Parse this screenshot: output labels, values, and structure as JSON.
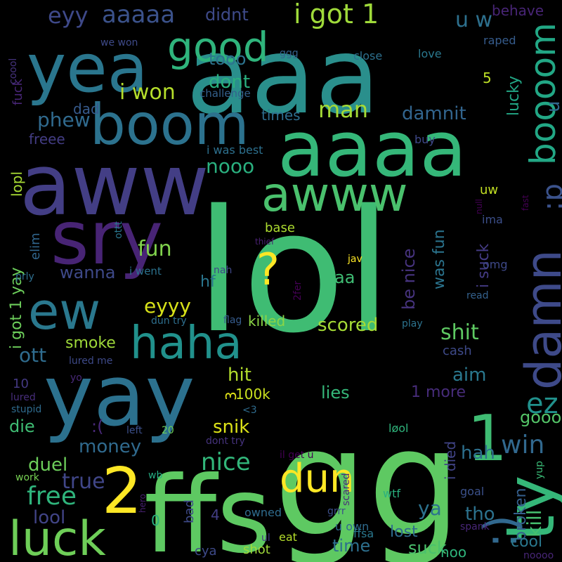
{
  "background": "#000000",
  "words": [
    {
      "text": "lol",
      "color": "#3fbc73",
      "rot": 0
    },
    {
      "text": "gg",
      "color": "#5ec962",
      "rot": 0
    },
    {
      "text": "ffs",
      "color": "#5ec962",
      "rot": 0
    },
    {
      "text": "aaa",
      "color": "#2a8f8c",
      "rot": 0
    },
    {
      "text": "aww",
      "color": "#433e85",
      "rot": 0
    },
    {
      "text": "yay",
      "color": "#2c718e",
      "rot": 0
    },
    {
      "text": "sry",
      "color": "#482475",
      "rot": 0
    },
    {
      "text": "aaaa",
      "color": "#35b779",
      "rot": 0
    },
    {
      "text": "boom",
      "color": "#2c728e",
      "rot": 0
    },
    {
      "text": "yea",
      "color": "#2a768e",
      "rot": 0
    },
    {
      "text": "ew",
      "color": "#2a788e",
      "rot": 0
    },
    {
      "text": "luck",
      "color": "#6ece58",
      "rot": 0
    },
    {
      "text": "haha",
      "color": "#21918c",
      "rot": 0
    },
    {
      "text": "awww",
      "color": "#4ac16d",
      "rot": 0
    },
    {
      "text": "dun",
      "color": "#fde725",
      "rot": 0
    },
    {
      "text": "2",
      "color": "#fde725",
      "rot": 0
    },
    {
      "text": "damn",
      "color": "#3e4a89",
      "rot": -90
    },
    {
      "text": "ty",
      "color": "#35b779",
      "rot": -90
    },
    {
      "text": "1",
      "color": "#3fbc73",
      "rot": 0
    },
    {
      "text": "boooom",
      "color": "#22a785",
      "rot": -90
    },
    {
      "text": "good",
      "color": "#2fb47c",
      "rot": 0
    },
    {
      "text": "?",
      "color": "#fde725",
      "rot": 0
    },
    {
      "text": ":)",
      "color": "#31688e",
      "rot": -90
    },
    {
      "text": ":p",
      "color": "#3b528b",
      "rot": -90
    },
    {
      "text": ":(",
      "color": "#482878",
      "rot": 0
    },
    {
      "text": "i got 1",
      "color": "#9fda3a",
      "rot": 0
    },
    {
      "text": "aaaaa",
      "color": "#3b528b",
      "rot": 0
    },
    {
      "text": "eyy",
      "color": "#3e4989",
      "rot": 0
    },
    {
      "text": "didnt",
      "color": "#3e4a89",
      "rot": 0
    },
    {
      "text": "u w",
      "color": "#2d708e",
      "rot": 0
    },
    {
      "text": "behave",
      "color": "#482576",
      "rot": 0
    },
    {
      "text": "u",
      "color": "#31688e",
      "rot": -90
    },
    {
      "text": "we won",
      "color": "#3e4a89",
      "rot": 0
    },
    {
      "text": "raped",
      "color": "#365c8d",
      "rot": 0
    },
    {
      "text": "coool",
      "color": "#46337e",
      "rot": -90
    },
    {
      "text": "fuck",
      "color": "#482677",
      "rot": -90
    },
    {
      "text": "tooo",
      "color": "#2c738e",
      "rot": 0
    },
    {
      "text": "ggg",
      "color": "#34618d",
      "rot": 0
    },
    {
      "text": "close",
      "color": "#2d708e",
      "rot": 0
    },
    {
      "text": "love",
      "color": "#2a788e",
      "rot": 0
    },
    {
      "text": "dont",
      "color": "#2ab07f",
      "rot": 0
    },
    {
      "text": "i won",
      "color": "#b5de2b",
      "rot": 0
    },
    {
      "text": "challenge",
      "color": "#34618d",
      "rot": 0
    },
    {
      "text": "5",
      "color": "#bddf26",
      "rot": 0
    },
    {
      "text": "lucky",
      "color": "#22a785",
      "rot": -90
    },
    {
      "text": "dad",
      "color": "#375b8d",
      "rot": 0
    },
    {
      "text": "phew",
      "color": "#306a8e",
      "rot": 0
    },
    {
      "text": "man",
      "color": "#a5db36",
      "rot": 0
    },
    {
      "text": "damnit",
      "color": "#32658e",
      "rot": 0
    },
    {
      "text": "times",
      "color": "#2e6d8e",
      "rot": 0
    },
    {
      "text": "freee",
      "color": "#433d84",
      "rot": 0
    },
    {
      "text": "buy",
      "color": "#3f4889",
      "rot": 0
    },
    {
      "text": "lopl",
      "color": "#a8db34",
      "rot": -90
    },
    {
      "text": "i was best",
      "color": "#2d708e",
      "rot": 0
    },
    {
      "text": "nooo",
      "color": "#2ab07f",
      "rot": 0
    },
    {
      "text": "fast",
      "color": "#440154",
      "rot": -90
    },
    {
      "text": "uw",
      "color": "#c2df23",
      "rot": 0
    },
    {
      "text": "null",
      "color": "#440154",
      "rot": -90
    },
    {
      "text": "ima",
      "color": "#3c4f8a",
      "rot": 0
    },
    {
      "text": "i got 1 yay",
      "color": "#6ccd5a",
      "rot": -90
    },
    {
      "text": "elim",
      "color": "#31668e",
      "rot": -90
    },
    {
      "text": "ottt",
      "color": "#2a768e",
      "rot": -90
    },
    {
      "text": "base",
      "color": "#addc30",
      "rot": 0
    },
    {
      "text": "i suck",
      "color": "#443b84",
      "rot": -90
    },
    {
      "text": "thief",
      "color": "#482071",
      "rot": 0
    },
    {
      "text": "fun",
      "color": "#81d34d",
      "rot": 0
    },
    {
      "text": "jav",
      "color": "#fde725",
      "rot": 0
    },
    {
      "text": "be nice",
      "color": "#46337e",
      "rot": -90
    },
    {
      "text": "was fun",
      "color": "#2b748e",
      "rot": -90
    },
    {
      "text": "omg",
      "color": "#3e4989",
      "rot": 0
    },
    {
      "text": "wanna",
      "color": "#3e4989",
      "rot": 0
    },
    {
      "text": "i went",
      "color": "#2c728e",
      "rot": 0
    },
    {
      "text": "aa",
      "color": "#3fbc73",
      "rot": 0
    },
    {
      "text": "prly",
      "color": "#2e6e8e",
      "rot": 0
    },
    {
      "text": "nah",
      "color": "#3f4788",
      "rot": 0
    },
    {
      "text": "read",
      "color": "#34618d",
      "rot": 0
    },
    {
      "text": "hf",
      "color": "#2a768e",
      "rot": 0
    },
    {
      "text": "2fer",
      "color": "#440154",
      "rot": -90
    },
    {
      "text": "eyyy",
      "color": "#d8e219",
      "rot": 0
    },
    {
      "text": "dun try",
      "color": "#2e6f8e",
      "rot": 0
    },
    {
      "text": "flag",
      "color": "#365c8d",
      "rot": 0
    },
    {
      "text": "killed",
      "color": "#8bd646",
      "rot": 0
    },
    {
      "text": "scored",
      "color": "#a5db36",
      "rot": 0
    },
    {
      "text": "play",
      "color": "#2c738e",
      "rot": 0
    },
    {
      "text": "shit",
      "color": "#5ec962",
      "rot": 0
    },
    {
      "text": "ott",
      "color": "#2f6c8e",
      "rot": 0
    },
    {
      "text": "smoke",
      "color": "#9fda3a",
      "rot": 0
    },
    {
      "text": "cash",
      "color": "#3e4a89",
      "rot": 0
    },
    {
      "text": "lured me",
      "color": "#3e4a89",
      "rot": 0
    },
    {
      "text": "hit",
      "color": "#b2dd2d",
      "rot": 0
    },
    {
      "text": "aim",
      "color": "#2a788e",
      "rot": 0
    },
    {
      "text": "10",
      "color": "#443983",
      "rot": 0
    },
    {
      "text": "yo",
      "color": "#482878",
      "rot": 0
    },
    {
      "text": "100k",
      "color": "#cae11f",
      "rot": 0
    },
    {
      "text": "3",
      "color": "#e2e418",
      "rot": -90
    },
    {
      "text": "lies",
      "color": "#35b779",
      "rot": 0
    },
    {
      "text": "1 more",
      "color": "#472c7a",
      "rot": 0
    },
    {
      "text": "lured",
      "color": "#472d7b",
      "rot": 0
    },
    {
      "text": "stupid",
      "color": "#2f6b8e",
      "rot": 0
    },
    {
      "text": "ez",
      "color": "#21918c",
      "rot": 0
    },
    {
      "text": "<3",
      "color": "#2f6c8e",
      "rot": 0
    },
    {
      "text": "die",
      "color": "#3fbc73",
      "rot": 0
    },
    {
      "text": "snik",
      "color": "#dde318",
      "rot": 0
    },
    {
      "text": "goood",
      "color": "#54c568",
      "rot": 0
    },
    {
      "text": "money",
      "color": "#306a8e",
      "rot": 0
    },
    {
      "text": "left",
      "color": "#3c508b",
      "rot": 0
    },
    {
      "text": "20",
      "color": "#6ece58",
      "rot": 0
    },
    {
      "text": "i died",
      "color": "#414487",
      "rot": -90
    },
    {
      "text": "dont try",
      "color": "#46337e",
      "rot": 0
    },
    {
      "text": "løol",
      "color": "#2fb47c",
      "rot": 0
    },
    {
      "text": "win",
      "color": "#31688e",
      "rot": 0
    },
    {
      "text": "hah",
      "color": "#2d708e",
      "rot": 0
    },
    {
      "text": "nice",
      "color": "#32b67a",
      "rot": 0
    },
    {
      "text": "duel",
      "color": "#6ccd5a",
      "rot": 0
    },
    {
      "text": "il get u",
      "color": "#440154",
      "rot": 0
    },
    {
      "text": "true",
      "color": "#404688",
      "rot": 0
    },
    {
      "text": "wb",
      "color": "#25ac82",
      "rot": 0
    },
    {
      "text": "work",
      "color": "#77d153",
      "rot": 0
    },
    {
      "text": "kill",
      "color": "#46c06f",
      "rot": -90
    },
    {
      "text": "yup",
      "color": "#3aba76",
      "rot": -90
    },
    {
      "text": "free",
      "color": "#2fb47c",
      "rot": 0
    },
    {
      "text": "broken",
      "color": "#355f8d",
      "rot": -90
    },
    {
      "text": "ya",
      "color": "#2c728e",
      "rot": 0
    },
    {
      "text": "goal",
      "color": "#3b518b",
      "rot": 0
    },
    {
      "text": "lool",
      "color": "#414487",
      "rot": 0
    },
    {
      "text": "hero",
      "color": "#482071",
      "rot": -90
    },
    {
      "text": "scared",
      "color": "#4a2d79",
      "rot": -90
    },
    {
      "text": "wtf",
      "color": "#2ab07f",
      "rot": 0
    },
    {
      "text": "tho",
      "color": "#2c728e",
      "rot": 0
    },
    {
      "text": "0",
      "color": "#2ab07f",
      "rot": 0
    },
    {
      "text": "owned",
      "color": "#2f6c8e",
      "rot": 0
    },
    {
      "text": "4",
      "color": "#433e85",
      "rot": 0
    },
    {
      "text": "bad",
      "color": "#3e4a89",
      "rot": -90
    },
    {
      "text": "grrr",
      "color": "#3c4f8a",
      "rot": 0
    },
    {
      "text": "u own",
      "color": "#2f6b8e",
      "rot": 0
    },
    {
      "text": "spank",
      "color": "#482677",
      "rot": 0
    },
    {
      "text": "lost",
      "color": "#2f6c8e",
      "rot": 0
    },
    {
      "text": "cool",
      "color": "#2a788e",
      "rot": 0
    },
    {
      "text": "time",
      "color": "#2d708e",
      "rot": 0
    },
    {
      "text": "ul",
      "color": "#433d84",
      "rot": 0
    },
    {
      "text": "eat",
      "color": "#b5de2b",
      "rot": 0
    },
    {
      "text": "ffsa",
      "color": "#2a788e",
      "rot": 0
    },
    {
      "text": "suck",
      "color": "#4ac16d",
      "rot": 0
    },
    {
      "text": "noo",
      "color": "#2fb47c",
      "rot": 0
    },
    {
      "text": "cya",
      "color": "#3e4a89",
      "rot": 0
    },
    {
      "text": "shot",
      "color": "#9fda3a",
      "rot": 0
    },
    {
      "text": "noooo",
      "color": "#482677",
      "rot": 0
    }
  ]
}
